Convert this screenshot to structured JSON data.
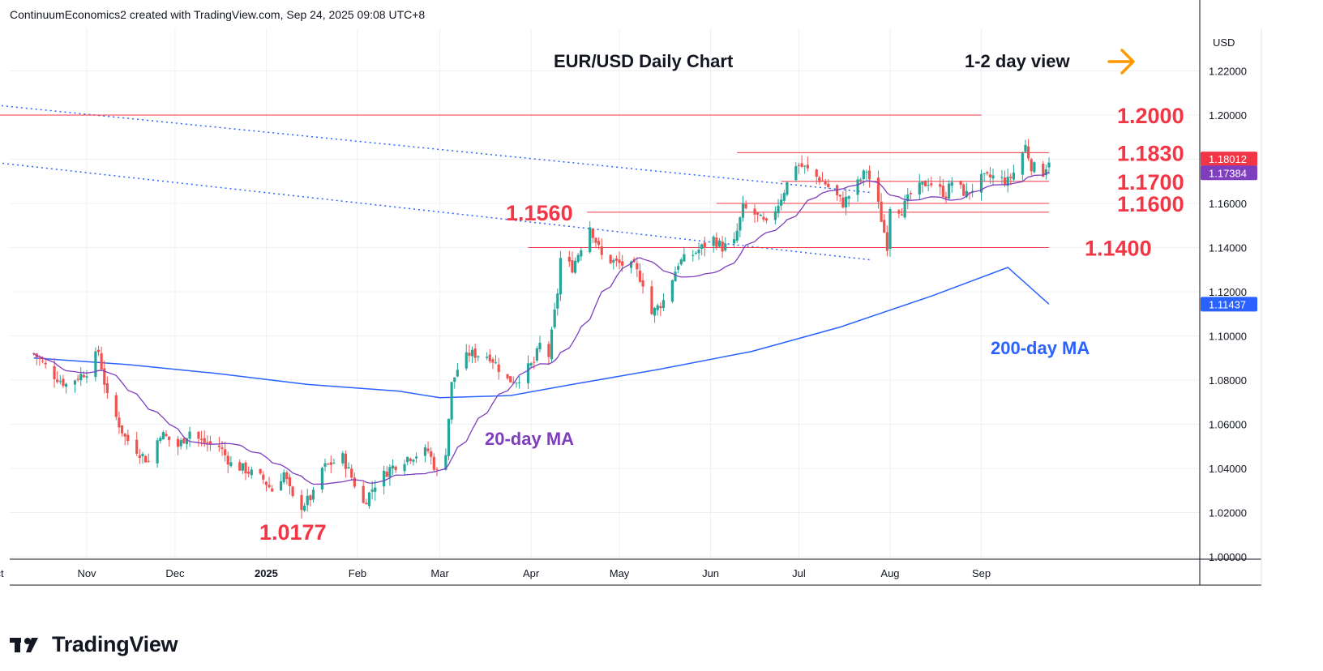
{
  "header": {
    "attribution": "ContinuumEconomics2 created with TradingView.com, Sep 24, 2025 09:08 UTC+8"
  },
  "footer": {
    "brand": "TradingView"
  },
  "colors": {
    "up": "#26a69a",
    "down": "#ef5350",
    "level": "#f23645",
    "ma20": "#7e3ebd",
    "ma200": "#2962ff",
    "arrow": "#ff9800"
  },
  "chart_data": {
    "type": "candlestick",
    "title": "EUR/USD Daily Chart",
    "view_note": "1-2 day view",
    "currency": "USD",
    "y_ticks": [
      "1.22000",
      "1.20000",
      "1.18000",
      "1.16000",
      "1.14000",
      "1.12000",
      "1.10000",
      "1.08000",
      "1.06000",
      "1.04000",
      "1.02000",
      "1.00000"
    ],
    "ylim": [
      1.0,
      1.24
    ],
    "x_ticks": [
      "Nov",
      "Dec",
      "2025",
      "Feb",
      "Mar",
      "Apr",
      "May",
      "Jun",
      "Jul",
      "Aug",
      "Sep",
      "Oct"
    ],
    "levels": [
      {
        "label": "1.2000",
        "value": 1.2
      },
      {
        "label": "1.1830",
        "value": 1.183
      },
      {
        "label": "1.1700",
        "value": 1.17
      },
      {
        "label": "1.1600",
        "value": 1.16
      },
      {
        "label": "1.1560",
        "value": 1.156
      },
      {
        "label": "1.1400",
        "value": 1.14
      }
    ],
    "low_label": "1.0177",
    "last_price": "1.18012",
    "ma20_value": "1.17384",
    "ma200_value": "1.11437",
    "ma20_label": "20-day MA",
    "ma200_label": "200-day MA",
    "close_path": [
      [
        "Oct 14",
        1.092
      ],
      [
        "Oct 21",
        1.082
      ],
      [
        "Oct 25",
        1.078
      ],
      [
        "Nov 1",
        1.084
      ],
      [
        "Nov 5",
        1.093
      ],
      [
        "Nov 8",
        1.072
      ],
      [
        "Nov 14",
        1.054
      ],
      [
        "Nov 22",
        1.043
      ],
      [
        "Nov 26",
        1.056
      ],
      [
        "Dec 2",
        1.05
      ],
      [
        "Dec 6",
        1.057
      ],
      [
        "Dec 10",
        1.052
      ],
      [
        "Dec 16",
        1.05
      ],
      [
        "Dec 20",
        1.042
      ],
      [
        "Dec 24",
        1.04
      ],
      [
        "Dec 31",
        1.035
      ],
      [
        "Jan 3",
        1.03
      ],
      [
        "Jan 7",
        1.038
      ],
      [
        "Jan 10",
        1.026
      ],
      [
        "Jan 13",
        1.023
      ],
      [
        "Jan 17",
        1.028
      ],
      [
        "Jan 20",
        1.04
      ],
      [
        "Jan 27",
        1.045
      ],
      [
        "Feb 3",
        1.024
      ],
      [
        "Feb 7",
        1.033
      ],
      [
        "Feb 12",
        1.04
      ],
      [
        "Feb 18",
        1.045
      ],
      [
        "Feb 25",
        1.048
      ],
      [
        "Feb 28",
        1.038
      ],
      [
        "Mar 3",
        1.048
      ],
      [
        "Mar 5",
        1.078
      ],
      [
        "Mar 7",
        1.085
      ],
      [
        "Mar 11",
        1.092
      ],
      [
        "Mar 18",
        1.091
      ],
      [
        "Mar 24",
        1.08
      ],
      [
        "Mar 27",
        1.08
      ],
      [
        "Apr 2",
        1.088
      ],
      [
        "Apr 4",
        1.096
      ],
      [
        "Apr 7",
        1.091
      ],
      [
        "Apr 10",
        1.12
      ],
      [
        "Apr 11",
        1.135
      ],
      [
        "Apr 15",
        1.131
      ],
      [
        "Apr 21",
        1.15
      ],
      [
        "Apr 25",
        1.136
      ],
      [
        "Apr 30",
        1.133
      ],
      [
        "May 6",
        1.131
      ],
      [
        "May 10",
        1.122
      ],
      [
        "May 12",
        1.11
      ],
      [
        "May 16",
        1.116
      ],
      [
        "May 21",
        1.133
      ],
      [
        "May 26",
        1.137
      ],
      [
        "Jun 2",
        1.144
      ],
      [
        "Jun 5",
        1.14
      ],
      [
        "Jun 9",
        1.142
      ],
      [
        "Jun 12",
        1.158
      ],
      [
        "Jun 16",
        1.155
      ],
      [
        "Jun 20",
        1.15
      ],
      [
        "Jun 24",
        1.16
      ],
      [
        "Jun 30",
        1.178
      ],
      [
        "Jul 3",
        1.176
      ],
      [
        "Jul 10",
        1.169
      ],
      [
        "Jul 16",
        1.16
      ],
      [
        "Jul 21",
        1.169
      ],
      [
        "Jul 24",
        1.175
      ],
      [
        "Jul 28",
        1.159
      ],
      [
        "Jul 31",
        1.141
      ],
      [
        "Aug 1",
        1.159
      ],
      [
        "Aug 5",
        1.157
      ],
      [
        "Aug 8",
        1.164
      ],
      [
        "Aug 14",
        1.17
      ],
      [
        "Aug 20",
        1.164
      ],
      [
        "Aug 22",
        1.17
      ],
      [
        "Aug 27",
        1.164
      ],
      [
        "Sep 1",
        1.171
      ],
      [
        "Sep 5",
        1.172
      ],
      [
        "Sep 10",
        1.17
      ],
      [
        "Sep 12",
        1.174
      ],
      [
        "Sep 16",
        1.186
      ],
      [
        "Sep 18",
        1.177
      ],
      [
        "Sep 22",
        1.174
      ],
      [
        "Sep 24",
        1.18
      ]
    ]
  }
}
